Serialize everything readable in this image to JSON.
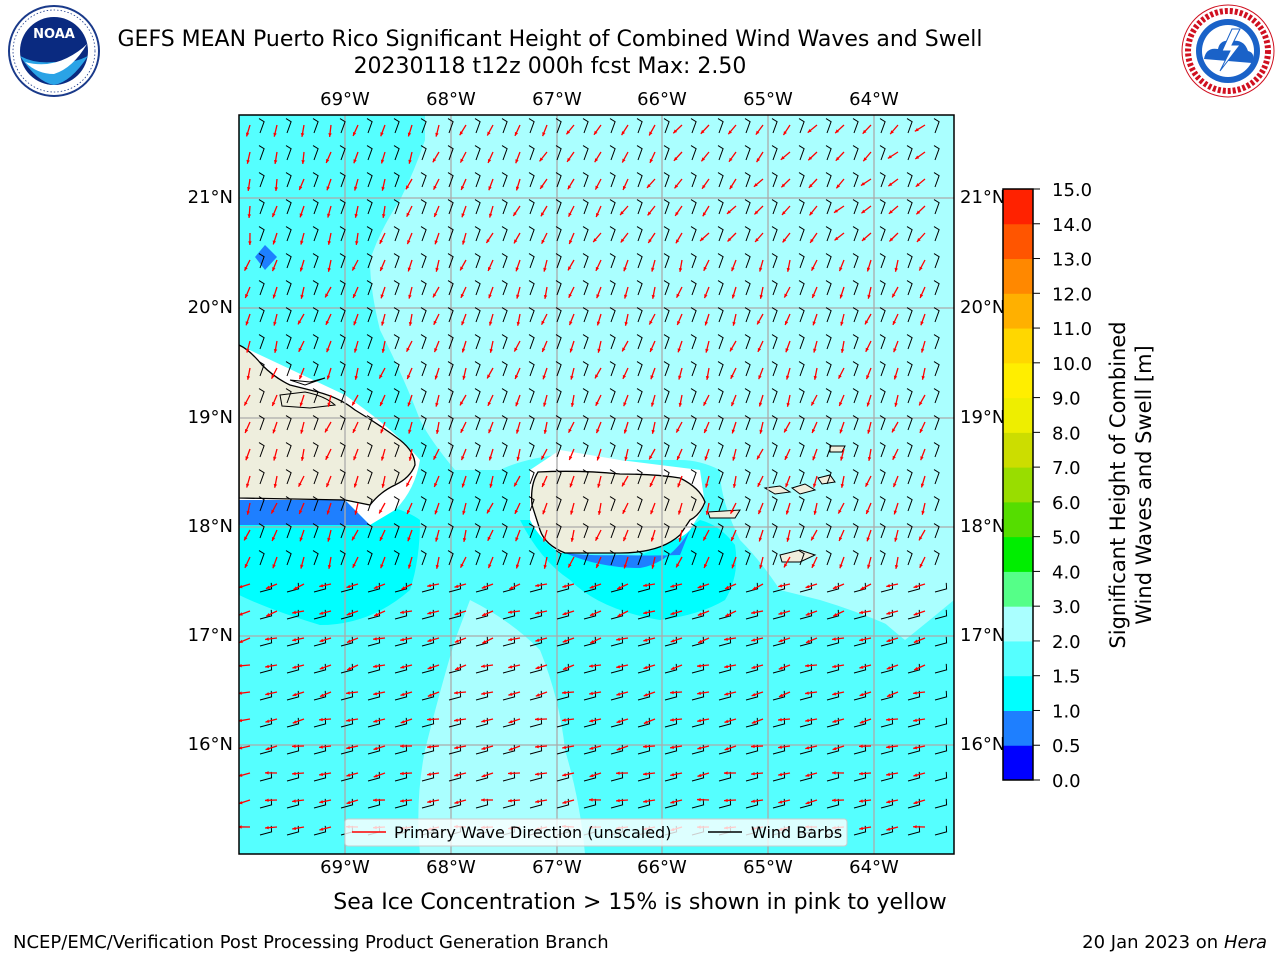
{
  "header": {
    "title_line1": "GEFS MEAN Puerto Rico Significant Height of Combined Wind Waves and Swell",
    "title_line2": "20230118 t12z 000h fcst   Max: 2.50"
  },
  "logos": {
    "left": "noara-logo",
    "right": "nws-logo",
    "left_ring_text": "NATIONAL OCEANIC AND ATMOSPHERIC ADMINISTRATION · U.S. DEPARTMENT OF COMMERCE",
    "left_center_text": "NOAA",
    "right_ring_text": "NATIONAL WEATHER SERVICE"
  },
  "map": {
    "lon_labels_top": [
      "69°W",
      "68°W",
      "67°W",
      "66°W",
      "65°W",
      "64°W"
    ],
    "lon_labels_bottom": [
      "69°W",
      "68°W",
      "67°W",
      "66°W",
      "65°W",
      "64°W"
    ],
    "lat_labels_left": [
      "21°N",
      "20°N",
      "19°N",
      "18°N",
      "17°N",
      "16°N"
    ],
    "lat_labels_right": [
      "21°N",
      "20°N",
      "19°N",
      "18°N",
      "17°N",
      "16°N"
    ],
    "legend": {
      "wave_direction": "Primary Wave Direction (unscaled)",
      "wind_barbs": "Wind Barbs"
    },
    "colors": {
      "ocean_1_5_2_0": "#55ffff",
      "ocean_2_0_3_0": "#aaffff",
      "ocean_1_0_1_5": "#00ffff",
      "ocean_0_5_1_0": "#1e7fff",
      "ocean_0_0_0_5": "#0000ff",
      "land": "#eeeedd",
      "arrow": "#ff0000",
      "barb": "#000000"
    }
  },
  "colorbar": {
    "label_line1": "Significant Height of Combined",
    "label_line2": "Wind Waves and Swell [m]",
    "ticks": [
      "15.0",
      "14.0",
      "13.0",
      "12.0",
      "11.0",
      "10.0",
      "9.0",
      "8.0",
      "7.0",
      "6.0",
      "5.0",
      "4.0",
      "3.0",
      "2.0",
      "1.5",
      "1.0",
      "0.5",
      "0.0"
    ],
    "colors_bottom_to_top": [
      "#0000ff",
      "#1e7fff",
      "#00ffff",
      "#55ffff",
      "#aaffff",
      "#55ff88",
      "#00ee00",
      "#55dd00",
      "#99dd00",
      "#ccdd00",
      "#eeee00",
      "#ffee00",
      "#ffd700",
      "#ffb000",
      "#ff8800",
      "#ff5500",
      "#ff2200",
      "#ff0000"
    ]
  },
  "notes": {
    "sea_ice": "Sea Ice Concentration > 15% is shown in pink to yellow"
  },
  "footer": {
    "left": "NCEP/EMC/Verification Post Processing Product Generation Branch",
    "right_prefix": "20 Jan 2023 on ",
    "right_host": "Hera"
  }
}
